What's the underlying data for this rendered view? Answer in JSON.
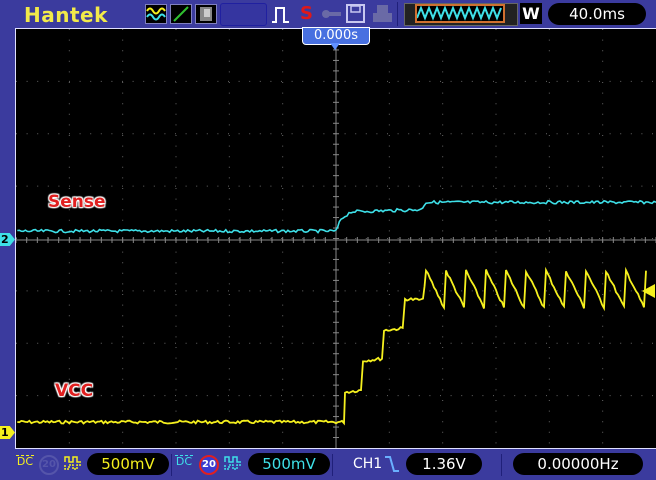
{
  "header": {
    "brand": "Hantek",
    "trigger_position": "0.000s",
    "timebase": "40.0ms",
    "acquire_mode": "W",
    "icons": [
      "waveform-display-icon",
      "line-mode-icon",
      "persistence-icon",
      "pulse-trigger-icon",
      "stop-icon",
      "key-icon",
      "save-icon",
      "print-icon",
      "memory-waveform-icon"
    ],
    "run_status": "S"
  },
  "bottom": {
    "ch1": {
      "coupling": "DC",
      "volts_div": "500mV",
      "bw_limit": "20",
      "bw_limit_active": false
    },
    "ch2": {
      "coupling": "DC",
      "volts_div": "500mV",
      "bw_limit": "20",
      "bw_limit_active": true
    },
    "trigger": {
      "source": "CH1",
      "slope": "falling",
      "level": "1.36V"
    },
    "frequency": "0.00000Hz"
  },
  "channels": {
    "ch1": {
      "marker": "1",
      "label": "VCC",
      "color": "#f5f01e"
    },
    "ch2": {
      "marker": "2",
      "label": "Sense",
      "color": "#3ee0e8"
    }
  },
  "colors": {
    "background": "#3b3b9e",
    "screen": "#000000",
    "brand": "#f2ea4a",
    "label": "#e02020"
  },
  "chart_data": {
    "type": "line",
    "xlabel": "",
    "ylabel": "",
    "time_per_div_ms": 40,
    "volts_per_div": 0.5,
    "grid": true,
    "series": [
      {
        "name": "VCC",
        "channel": "CH1",
        "time_ms": [
          -239,
          6,
          6.75,
          18.75,
          20.25,
          34.5,
          36,
          50,
          51.75,
          65.25
        ],
        "volts": [
          0.095,
          0.095,
          0.38,
          0.4,
          0.68,
          0.7,
          0.97,
          0.99,
          1.27,
          1.26
        ],
        "sawtooth": {
          "start_ms": 67.5,
          "period_ms": 15,
          "peak_v": 1.54,
          "trough_v": 1.19,
          "end_ms": 240
        }
      },
      {
        "name": "Sense",
        "channel": "CH2",
        "time_ms": [
          -239,
          0,
          3.75,
          11.25,
          63.75,
          67.5,
          240
        ],
        "volts": [
          0.085,
          0.085,
          0.2,
          0.27,
          0.29,
          0.36,
          0.36
        ]
      }
    ]
  }
}
